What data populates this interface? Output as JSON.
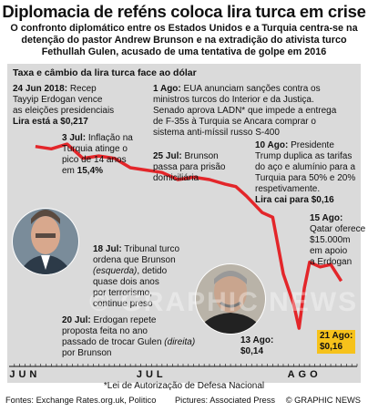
{
  "header": {
    "title": "Diplomacia de reféns coloca lira turca em crise",
    "subtitle": "O confronto diplomático entre os Estados Unidos e a Turquia centra-se na detenção do pastor Andrew Brunson e na extradição do ativista turco Fethullah Gulen, acusado de uma tentativa de golpe em 2016"
  },
  "chart_data": {
    "type": "line",
    "title": "Taxa e câmbio da lira turca face ao dólar",
    "x_labels": [
      "JUN",
      "JUL",
      "AGO"
    ],
    "x": [
      "2018-06-24",
      "2018-06-27",
      "2018-06-30",
      "2018-07-03",
      "2018-07-06",
      "2018-07-09",
      "2018-07-12",
      "2018-07-15",
      "2018-07-18",
      "2018-07-21",
      "2018-07-24",
      "2018-07-27",
      "2018-07-30",
      "2018-08-01",
      "2018-08-03",
      "2018-08-06",
      "2018-08-08",
      "2018-08-10",
      "2018-08-12",
      "2018-08-13",
      "2018-08-14",
      "2018-08-15",
      "2018-08-17",
      "2018-08-19",
      "2018-08-21"
    ],
    "series": [
      {
        "color": "#e3262a",
        "values": [
          0.217,
          0.216,
          0.218,
          0.212,
          0.213,
          0.212,
          0.208,
          0.207,
          0.206,
          0.203,
          0.204,
          0.203,
          0.201,
          0.2,
          0.196,
          0.189,
          0.187,
          0.163,
          0.15,
          0.14,
          0.157,
          0.168,
          0.166,
          0.167,
          0.16
        ]
      }
    ],
    "ylim": [
      0.13,
      0.225
    ],
    "grid": false
  },
  "annotations": {
    "jun24": {
      "date": "24 Jun 2018:",
      "text1": " Recep",
      "text2": "Tayyip Erdogan vence",
      "text3": "as eleições presidenciais",
      "value": "Lira está a $0,217"
    },
    "jul3": {
      "date": "3 Jul:",
      "text1": " Inflação na",
      "text2": "Turquia atinge o",
      "text3": "pico de 14 anos",
      "text4a": "em ",
      "value": "15,4%"
    },
    "ago1": {
      "date": "1 Ago:",
      "text1": " EUA anunciam sanções contra os",
      "text2": "ministros turcos do Interior e da Justiça.",
      "text3": "Senado aprova LADN* que impede a entrega",
      "text4": "de F-35s à Turquia se Ancara comprar o",
      "text5": "sistema anti-míssil russo S-400"
    },
    "jul25": {
      "date": "25 Jul:",
      "text1": " Brunson",
      "text2": "passa para prisão",
      "text3": "domiciliária"
    },
    "ago10": {
      "date": "10 Ago:",
      "text1": " Presidente",
      "text2": "Trump duplica as tarifas",
      "text3": "do aço e alumínio para a",
      "text4": "Turquia para 50% e 20%",
      "text5": "respetivamente.",
      "value": "Lira cai para $0,16"
    },
    "ago15": {
      "date": "15 Ago:",
      "text1": "Qatar oferece",
      "text2": "$15.000m",
      "text3": "em apoio",
      "text4": "a Erdogan"
    },
    "jul18": {
      "date": "18 Jul:",
      "text1": " Tribunal turco",
      "text2": "ordena que Brunson",
      "text3i": "(esquerda)",
      "text3b": ", detido",
      "text4": "quase dois anos",
      "text5": "por terrorismo,",
      "text6": "continue preso"
    },
    "jul20": {
      "date": "20 Jul:",
      "text1": " Erdogan repete",
      "text2": "proposta feita no ano",
      "text3a": "passado de trocar Gulen ",
      "text3i": "(direita)",
      "text4": "por Brunson"
    },
    "ago13": {
      "date": "13 Ago:",
      "value": "$0,14"
    },
    "ago21": {
      "date": "21 Ago:",
      "value": "$0,16"
    }
  },
  "photos": {
    "left": "Andrew Brunson portrait",
    "right": "Fethullah Gulen portrait"
  },
  "watermark": "© GRAPHIC NEWS",
  "footer": {
    "footnote": "*Lei de Autorização de Defesa Nacional",
    "sources": "Fontes: Exchange Rates.org.uk, Politico",
    "photos": "Pictures: Associated Press",
    "credit": "© GRAPHIC NEWS"
  }
}
